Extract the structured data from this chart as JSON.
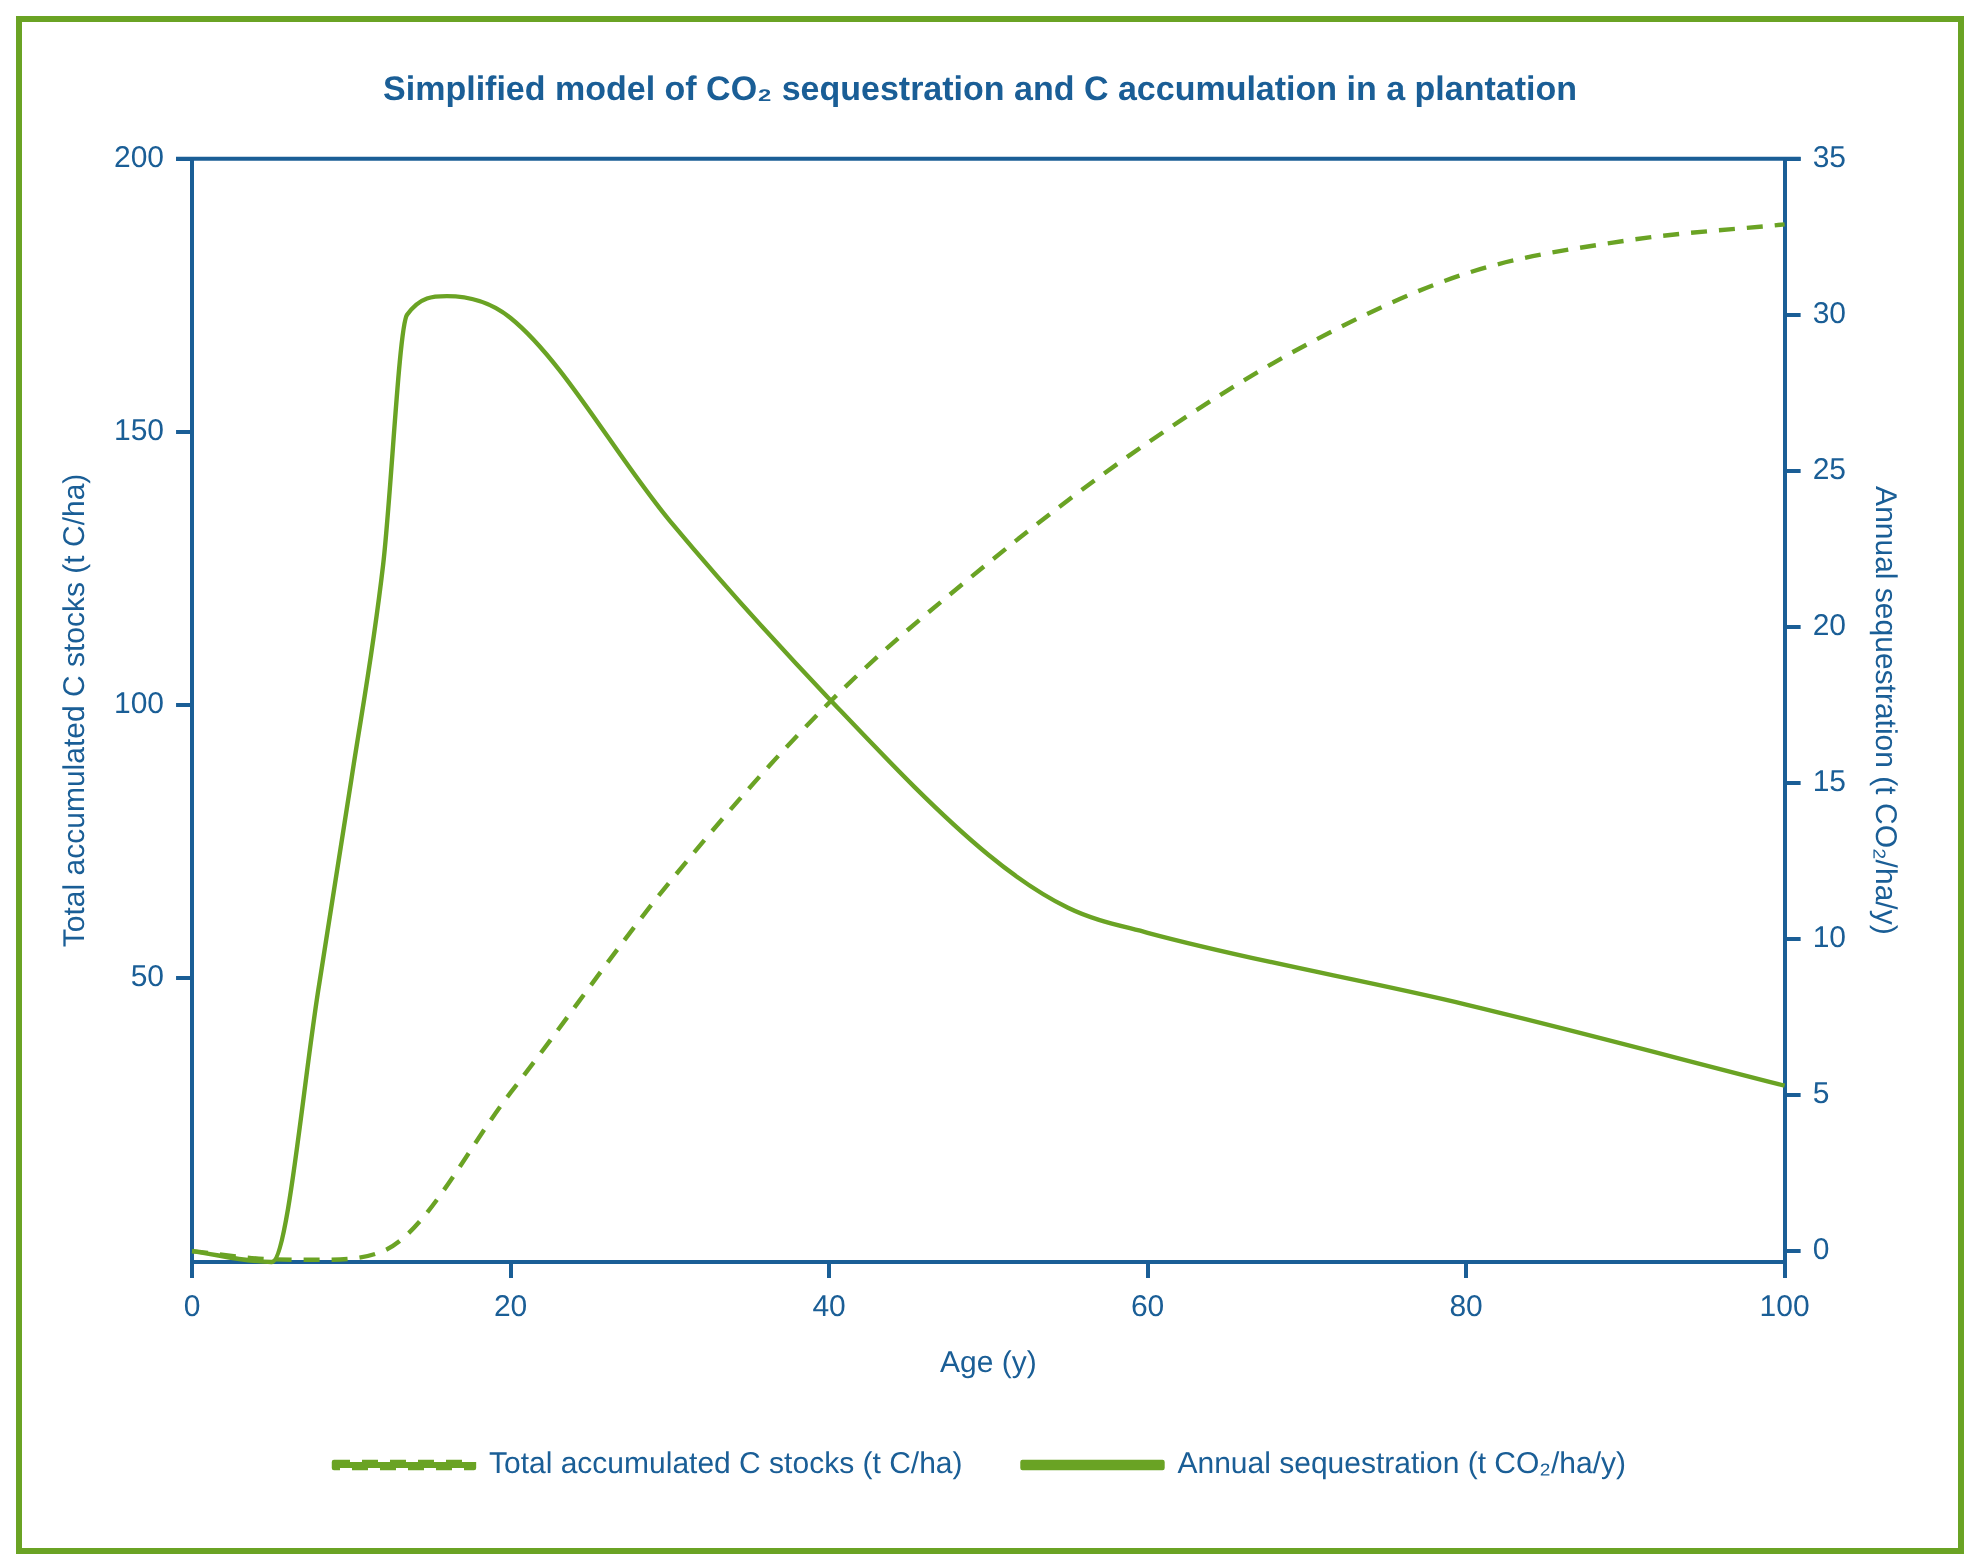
{
  "chart_data": {
    "type": "line",
    "title": "Simplified model of CO₂ sequestration and C accumulation in a plantation",
    "xlabel": "Age (y)",
    "ylabel": "Total accumulated C stocks (t C/ha)",
    "y2label": "Annual sequestration (t CO₂/ha/y)",
    "xlim": [
      0,
      100
    ],
    "xticks": [
      0,
      20,
      40,
      60,
      80,
      100
    ],
    "ylim": [
      -2,
      200
    ],
    "yticks": [
      50,
      100,
      150,
      200
    ],
    "y2lim": [
      -0.35,
      35
    ],
    "y2ticks": [
      0,
      5,
      10,
      15,
      20,
      25,
      30,
      35
    ],
    "grid": false,
    "legend": "bottom",
    "marker": "none",
    "series": [
      {
        "name": "Total accumulated C stocks (t C/ha)",
        "color": "#6aa324",
        "line_style": "dashed",
        "x": [
          0,
          5,
          8,
          12,
          20,
          30,
          40,
          50,
          60,
          70,
          80,
          90,
          100
        ],
        "values": [
          0,
          -1.5,
          -1.6,
          0,
          29,
          67.6,
          100.4,
          126,
          148,
          166,
          179,
          185,
          188
        ]
      },
      {
        "name": "Annual sequestration (t CO₂/ha/y)",
        "color": "#6aa324",
        "line_style": "solid",
        "axis": "y2",
        "x": [
          0,
          5,
          8,
          10,
          12,
          13.5,
          16,
          20,
          30,
          40,
          50,
          55,
          60,
          80,
          100
        ],
        "values": [
          0,
          -0.35,
          8.6,
          15.1,
          22,
          30,
          30.6,
          29.9,
          23.4,
          17.7,
          12.7,
          11,
          10.2,
          7.9,
          5.3
        ]
      }
    ]
  }
}
